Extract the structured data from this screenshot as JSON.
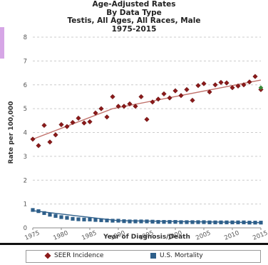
{
  "title": {
    "line1": "Age-Adjusted  Rates",
    "line2": "By Data Type",
    "line3": "Testis, All Ages, All Races, Male",
    "line4": "1975-2015"
  },
  "colors": {
    "seer": "#8b1a1a",
    "trend": "#c0706a",
    "mortality": "#2e5f8a",
    "grid": "#cccccc",
    "tab": "#d6a6e6"
  },
  "legend": {
    "seer_label": "SEER Incidence",
    "mortality_label": "U.S. Mortality"
  },
  "chart_data": {
    "type": "scatter",
    "title": "Age-Adjusted  Rates",
    "subtitle": "By Data Type / Testis, All Ages, All Races, Male / 1975-2015",
    "xlabel": "Year of Diagnosis/Death",
    "ylabel": "Rate per 100,000",
    "xlim": [
      1975,
      2015
    ],
    "ylim": [
      0,
      8
    ],
    "xticks": [
      1975,
      1980,
      1985,
      1990,
      1995,
      2000,
      2005,
      2010,
      2015
    ],
    "yticks": [
      0,
      1,
      2,
      3,
      4,
      5,
      6,
      7,
      8
    ],
    "grid": true,
    "legend_position": "bottom",
    "series": [
      {
        "name": "SEER Incidence",
        "marker": "diamond",
        "x": [
          1975,
          1976,
          1977,
          1978,
          1979,
          1980,
          1981,
          1982,
          1983,
          1984,
          1985,
          1986,
          1987,
          1988,
          1989,
          1990,
          1991,
          1992,
          1993,
          1994,
          1995,
          1996,
          1997,
          1998,
          1999,
          2000,
          2001,
          2002,
          2003,
          2004,
          2005,
          2006,
          2007,
          2008,
          2009,
          2010,
          2011,
          2012,
          2013,
          2014,
          2015
        ],
        "values": [
          3.72,
          3.45,
          4.3,
          3.6,
          3.9,
          4.33,
          4.25,
          4.42,
          4.6,
          4.4,
          4.45,
          4.82,
          5.0,
          4.65,
          5.5,
          5.1,
          5.1,
          5.2,
          5.1,
          5.5,
          4.55,
          5.28,
          5.4,
          5.62,
          5.45,
          5.75,
          5.55,
          5.8,
          5.35,
          5.97,
          6.05,
          5.7,
          6.0,
          6.1,
          6.08,
          5.88,
          5.95,
          6.0,
          6.12,
          6.35,
          5.8
        ]
      },
      {
        "name": "SEER Incidence Trend",
        "type": "line",
        "x": [
          1975,
          1989,
          2015
        ],
        "values": [
          3.72,
          5.0,
          6.2
        ]
      },
      {
        "name": "U.S. Mortality",
        "marker": "square",
        "x": [
          1975,
          1976,
          1977,
          1978,
          1979,
          1980,
          1981,
          1982,
          1983,
          1984,
          1985,
          1986,
          1987,
          1988,
          1989,
          1990,
          1991,
          1992,
          1993,
          1994,
          1995,
          1996,
          1997,
          1998,
          1999,
          2000,
          2001,
          2002,
          2003,
          2004,
          2005,
          2006,
          2007,
          2008,
          2009,
          2010,
          2011,
          2012,
          2013,
          2014,
          2015
        ],
        "values": [
          0.75,
          0.7,
          0.62,
          0.55,
          0.5,
          0.45,
          0.42,
          0.38,
          0.36,
          0.35,
          0.35,
          0.33,
          0.32,
          0.31,
          0.3,
          0.3,
          0.28,
          0.27,
          0.27,
          0.27,
          0.27,
          0.26,
          0.25,
          0.25,
          0.25,
          0.25,
          0.24,
          0.24,
          0.24,
          0.24,
          0.24,
          0.23,
          0.23,
          0.23,
          0.23,
          0.23,
          0.23,
          0.23,
          0.22,
          0.22,
          0.22
        ]
      },
      {
        "name": "U.S. Mortality Trend",
        "type": "line",
        "x": [
          1975,
          1990,
          2015
        ],
        "values": [
          0.72,
          0.3,
          0.22
        ]
      }
    ],
    "annotations": [
      {
        "name": "SEER Incidence 2015 alt",
        "x": 2015,
        "y": 5.88,
        "color": "#3a8a3a"
      }
    ]
  }
}
